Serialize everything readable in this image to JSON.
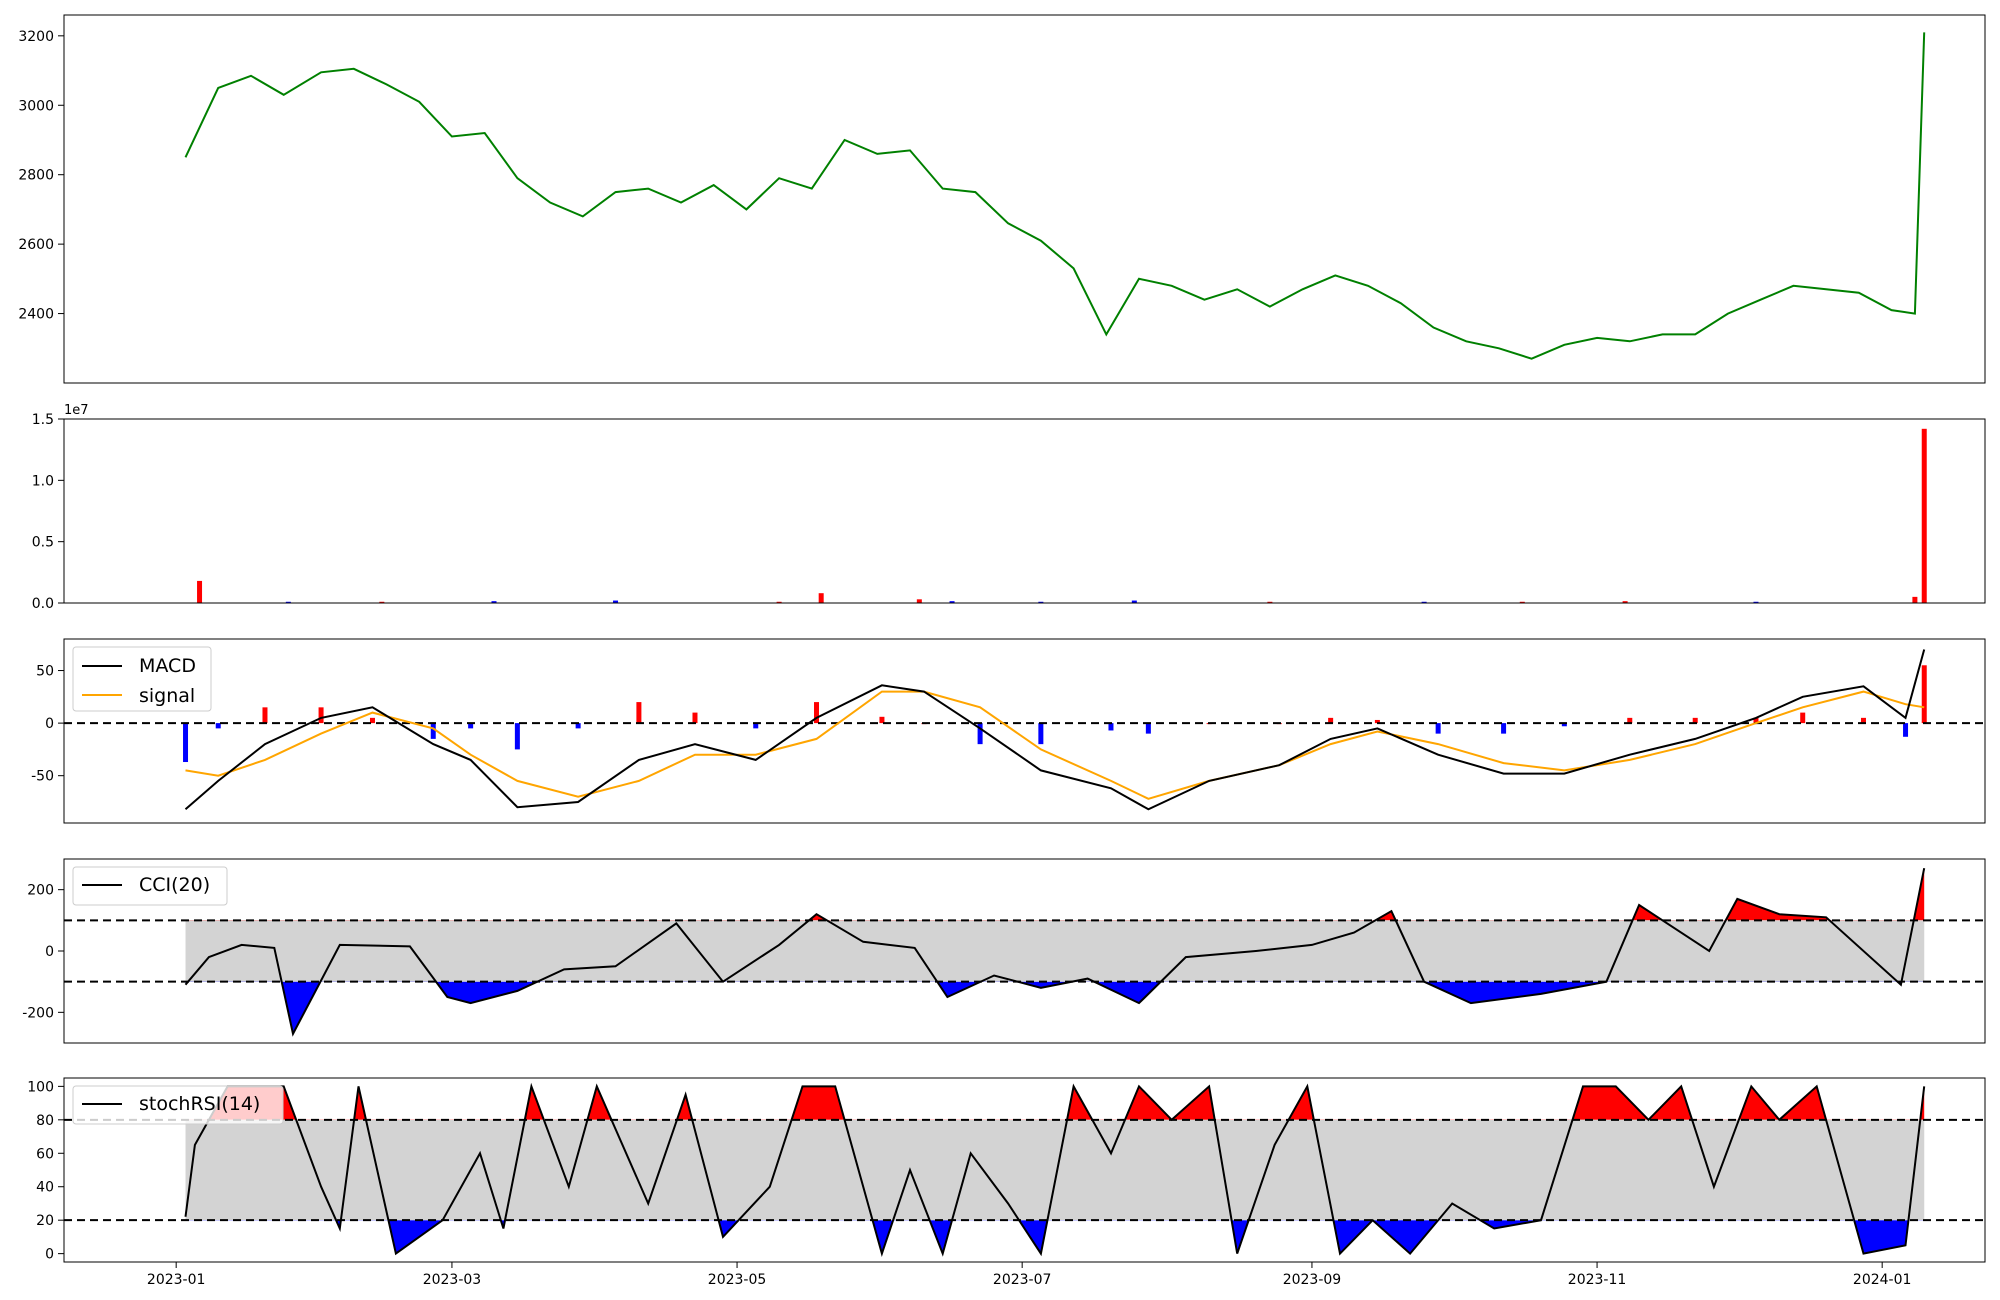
{
  "figure": {
    "background": "#ffffff"
  },
  "x_axis": {
    "ticks": [
      "2023-01",
      "2023-03",
      "2023-05",
      "2023-07",
      "2023-09",
      "2023-11",
      "2024-01"
    ],
    "range_days": [
      -24,
      387
    ]
  },
  "chart_data": [
    {
      "type": "line",
      "panel": "price",
      "color": "#008000",
      "ylim": [
        2200,
        3260
      ],
      "yticks": [
        2400,
        2600,
        2800,
        3000,
        3200
      ],
      "x": [
        "2023-01-03",
        "2023-01-10",
        "2023-01-17",
        "2023-01-24",
        "2023-02-01",
        "2023-02-08",
        "2023-02-15",
        "2023-02-22",
        "2023-03-01",
        "2023-03-08",
        "2023-03-15",
        "2023-03-22",
        "2023-03-29",
        "2023-04-05",
        "2023-04-12",
        "2023-04-19",
        "2023-04-26",
        "2023-05-03",
        "2023-05-10",
        "2023-05-17",
        "2023-05-24",
        "2023-05-31",
        "2023-06-07",
        "2023-06-14",
        "2023-06-21",
        "2023-06-28",
        "2023-07-05",
        "2023-07-12",
        "2023-07-19",
        "2023-07-26",
        "2023-08-02",
        "2023-08-09",
        "2023-08-16",
        "2023-08-23",
        "2023-08-30",
        "2023-09-06",
        "2023-09-13",
        "2023-09-20",
        "2023-09-27",
        "2023-10-04",
        "2023-10-11",
        "2023-10-18",
        "2023-10-25",
        "2023-11-01",
        "2023-11-08",
        "2023-11-15",
        "2023-11-22",
        "2023-11-29",
        "2023-12-06",
        "2023-12-13",
        "2023-12-20",
        "2023-12-27",
        "2024-01-03",
        "2024-01-08",
        "2024-01-10"
      ],
      "y": [
        2850,
        3050,
        3085,
        3030,
        3095,
        3105,
        3060,
        3010,
        2910,
        2920,
        2790,
        2720,
        2680,
        2750,
        2760,
        2720,
        2770,
        2700,
        2790,
        2760,
        2900,
        2860,
        2870,
        2760,
        2750,
        2660,
        2610,
        2530,
        2340,
        2500,
        2480,
        2440,
        2470,
        2420,
        2470,
        2510,
        2480,
        2430,
        2360,
        2320,
        2300,
        2270,
        2310,
        2330,
        2320,
        2340,
        2340,
        2400,
        2440,
        2480,
        2470,
        2460,
        2410,
        2400,
        3210
      ]
    },
    {
      "type": "bar",
      "panel": "volume",
      "offset_label": "1e7",
      "ylim": [
        0,
        1.5
      ],
      "yticks": [
        "0.0",
        "0.5",
        "1.0",
        "1.5"
      ],
      "up_color": "#ff0000",
      "down_color": "#0000ff",
      "x": [
        "2023-01-06",
        "2023-01-25",
        "2023-02-14",
        "2023-03-10",
        "2023-04-05",
        "2023-05-10",
        "2023-05-19",
        "2023-06-09",
        "2023-06-16",
        "2023-07-05",
        "2023-07-25",
        "2023-08-23",
        "2023-09-25",
        "2023-10-16",
        "2023-11-07",
        "2023-12-05",
        "2024-01-08",
        "2024-01-10"
      ],
      "values": [
        0.18,
        0.01,
        0.01,
        0.015,
        0.02,
        0.01,
        0.08,
        0.03,
        0.015,
        0.01,
        0.02,
        0.01,
        0.01,
        0.01,
        0.015,
        0.01,
        0.05,
        1.42
      ],
      "directions": [
        "up",
        "down",
        "up",
        "down",
        "down",
        "up",
        "up",
        "up",
        "down",
        "down",
        "down",
        "up",
        "down",
        "up",
        "up",
        "down",
        "up",
        "up"
      ]
    },
    {
      "type": "line",
      "panel": "macd",
      "ylim": [
        -95,
        80
      ],
      "yticks": [
        -50,
        0,
        50
      ],
      "zero_line": 0,
      "hist_up_color": "#ff0000",
      "hist_down_color": "#0000ff",
      "series": [
        {
          "name": "MACD",
          "color": "#000000",
          "x": [
            "2023-01-03",
            "2023-01-10",
            "2023-01-20",
            "2023-02-01",
            "2023-02-12",
            "2023-02-25",
            "2023-03-05",
            "2023-03-15",
            "2023-03-28",
            "2023-04-10",
            "2023-04-22",
            "2023-05-05",
            "2023-05-18",
            "2023-06-01",
            "2023-06-10",
            "2023-06-22",
            "2023-07-05",
            "2023-07-20",
            "2023-07-28",
            "2023-08-10",
            "2023-08-25",
            "2023-09-05",
            "2023-09-15",
            "2023-09-28",
            "2023-10-12",
            "2023-10-25",
            "2023-11-08",
            "2023-11-22",
            "2023-12-05",
            "2023-12-15",
            "2023-12-28",
            "2024-01-06",
            "2024-01-10"
          ],
          "y": [
            -82,
            -55,
            -20,
            5,
            15,
            -20,
            -35,
            -80,
            -75,
            -35,
            -20,
            -35,
            5,
            36,
            30,
            -5,
            -45,
            -62,
            -82,
            -55,
            -40,
            -15,
            -5,
            -30,
            -48,
            -48,
            -30,
            -15,
            5,
            25,
            35,
            5,
            70
          ]
        },
        {
          "name": "signal",
          "color": "#ffa500",
          "x": [
            "2023-01-03",
            "2023-01-10",
            "2023-01-20",
            "2023-02-01",
            "2023-02-12",
            "2023-02-25",
            "2023-03-05",
            "2023-03-15",
            "2023-03-28",
            "2023-04-10",
            "2023-04-22",
            "2023-05-05",
            "2023-05-18",
            "2023-06-01",
            "2023-06-10",
            "2023-06-22",
            "2023-07-05",
            "2023-07-20",
            "2023-07-28",
            "2023-08-10",
            "2023-08-25",
            "2023-09-05",
            "2023-09-15",
            "2023-09-28",
            "2023-10-12",
            "2023-10-25",
            "2023-11-08",
            "2023-11-22",
            "2023-12-05",
            "2023-12-15",
            "2023-12-28",
            "2024-01-06",
            "2024-01-10"
          ],
          "y": [
            -45,
            -50,
            -35,
            -10,
            10,
            -5,
            -30,
            -55,
            -70,
            -55,
            -30,
            -30,
            -15,
            30,
            30,
            15,
            -25,
            -55,
            -72,
            -55,
            -40,
            -20,
            -8,
            -20,
            -38,
            -45,
            -35,
            -20,
            0,
            15,
            30,
            18,
            15
          ]
        }
      ]
    },
    {
      "type": "line",
      "panel": "cci",
      "ylim": [
        -300,
        300
      ],
      "yticks": [
        -200,
        0,
        200
      ],
      "thresholds": [
        100,
        -100
      ],
      "band_color": "#d3d3d3",
      "over_color": "#ff0000",
      "under_color": "#0000ff",
      "series": [
        {
          "name": "CCI(20)",
          "color": "#000000",
          "x": [
            "2023-01-03",
            "2023-01-08",
            "2023-01-15",
            "2023-01-22",
            "2023-01-26",
            "2023-02-05",
            "2023-02-20",
            "2023-02-28",
            "2023-03-05",
            "2023-03-15",
            "2023-03-25",
            "2023-04-05",
            "2023-04-18",
            "2023-04-28",
            "2023-05-10",
            "2023-05-18",
            "2023-05-28",
            "2023-06-08",
            "2023-06-15",
            "2023-06-25",
            "2023-07-05",
            "2023-07-15",
            "2023-07-26",
            "2023-08-05",
            "2023-08-20",
            "2023-09-01",
            "2023-09-10",
            "2023-09-18",
            "2023-09-25",
            "2023-10-05",
            "2023-10-20",
            "2023-11-03",
            "2023-11-10",
            "2023-11-25",
            "2023-12-01",
            "2023-12-10",
            "2023-12-20",
            "2024-01-05",
            "2024-01-10"
          ],
          "y": [
            -110,
            -20,
            20,
            10,
            -270,
            20,
            15,
            -150,
            -170,
            -130,
            -60,
            -50,
            90,
            -100,
            20,
            120,
            30,
            10,
            -150,
            -80,
            -120,
            -90,
            -170,
            -20,
            0,
            20,
            60,
            130,
            -100,
            -170,
            -140,
            -100,
            150,
            0,
            170,
            120,
            110,
            -110,
            270
          ]
        }
      ]
    },
    {
      "type": "line",
      "panel": "stochrsi",
      "ylim": [
        -5,
        105
      ],
      "yticks": [
        0,
        20,
        40,
        60,
        80,
        100
      ],
      "thresholds": [
        80,
        20
      ],
      "band_color": "#d3d3d3",
      "over_color": "#ff0000",
      "under_color": "#0000ff",
      "series": [
        {
          "name": "stochRSI(14)",
          "color": "#000000",
          "x": [
            "2023-01-03",
            "2023-01-05",
            "2023-01-12",
            "2023-01-18",
            "2023-01-24",
            "2023-02-01",
            "2023-02-05",
            "2023-02-09",
            "2023-02-17",
            "2023-02-27",
            "2023-03-07",
            "2023-03-12",
            "2023-03-18",
            "2023-03-26",
            "2023-04-01",
            "2023-04-12",
            "2023-04-20",
            "2023-04-28",
            "2023-05-08",
            "2023-05-15",
            "2023-05-22",
            "2023-06-01",
            "2023-06-07",
            "2023-06-14",
            "2023-06-20",
            "2023-06-28",
            "2023-07-05",
            "2023-07-12",
            "2023-07-20",
            "2023-07-26",
            "2023-08-02",
            "2023-08-10",
            "2023-08-16",
            "2023-08-24",
            "2023-08-31",
            "2023-09-07",
            "2023-09-14",
            "2023-09-22",
            "2023-10-01",
            "2023-10-10",
            "2023-10-20",
            "2023-10-29",
            "2023-11-05",
            "2023-11-12",
            "2023-11-19",
            "2023-11-26",
            "2023-12-04",
            "2023-12-10",
            "2023-12-18",
            "2023-12-28",
            "2024-01-06",
            "2024-01-10"
          ],
          "y": [
            22,
            65,
            100,
            100,
            100,
            40,
            15,
            100,
            0,
            20,
            60,
            15,
            100,
            40,
            100,
            30,
            95,
            10,
            40,
            100,
            100,
            0,
            50,
            0,
            60,
            30,
            0,
            100,
            60,
            100,
            80,
            100,
            0,
            65,
            100,
            0,
            20,
            0,
            30,
            15,
            20,
            100,
            100,
            80,
            100,
            40,
            100,
            80,
            100,
            0,
            5,
            100
          ]
        }
      ]
    }
  ]
}
